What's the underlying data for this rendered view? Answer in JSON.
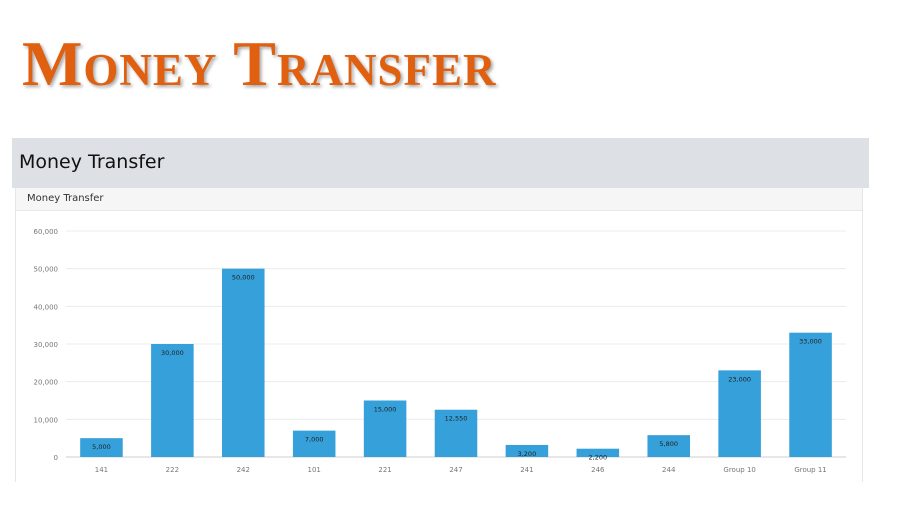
{
  "slide": {
    "title": "Money Transfer"
  },
  "panel": {
    "title": "Money Transfer"
  },
  "card": {
    "title": "Money Transfer"
  },
  "colors": {
    "title": "#e06010",
    "bar": "#35a0da",
    "panel_header": "#dde1e5"
  },
  "chart_data": {
    "type": "bar",
    "title": "",
    "xlabel": "",
    "ylabel": "",
    "categories": [
      "141",
      "222",
      "242",
      "101",
      "221",
      "247",
      "241",
      "246",
      "244",
      "Group 10",
      "Group 11"
    ],
    "values": [
      5000,
      30000,
      50000,
      7000,
      15000,
      12550,
      3200,
      2200,
      5800,
      23000,
      33000
    ],
    "data_labels": [
      "5,000",
      "30,000",
      "50,000",
      "7,000",
      "15,000",
      "12,550",
      "3,200",
      "2,200",
      "5,800",
      "23,000",
      "33,000"
    ],
    "ylim": [
      0,
      60000
    ],
    "yticks": [
      0,
      10000,
      20000,
      30000,
      40000,
      50000,
      60000
    ],
    "ytick_labels": [
      "0",
      "10,000",
      "20,000",
      "30,000",
      "40,000",
      "50,000",
      "60,000"
    ],
    "grid": true,
    "legend": "none"
  }
}
